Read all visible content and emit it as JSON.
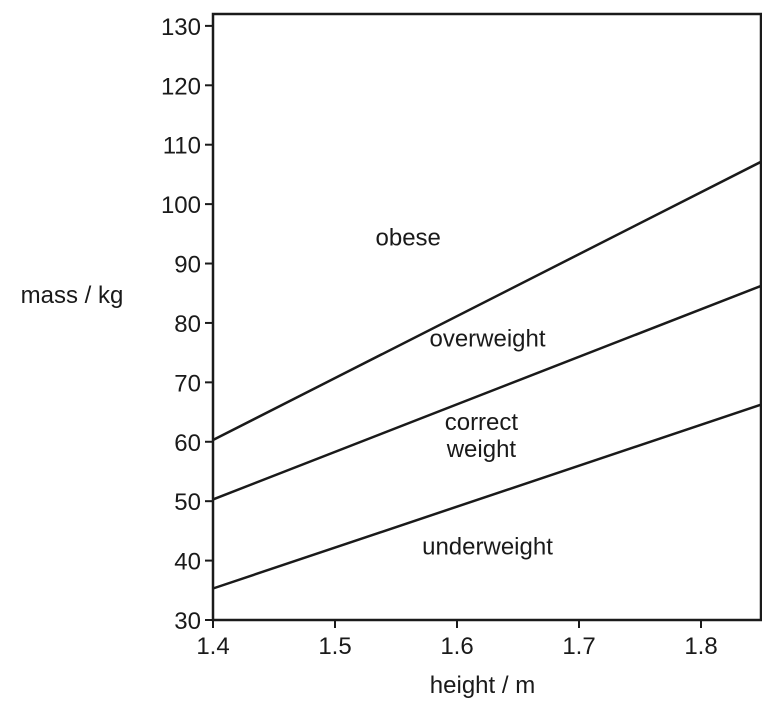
{
  "chart_data": {
    "type": "line",
    "title": "",
    "xlabel": "height / m",
    "ylabel": "mass / kg",
    "xlim": [
      1.4,
      1.85
    ],
    "ylim": [
      30,
      132
    ],
    "xticks": [
      1.4,
      1.5,
      1.6,
      1.7,
      1.8
    ],
    "xtick_labels": [
      "1.4",
      "1.5",
      "1.6",
      "1.7",
      "1.8"
    ],
    "yticks": [
      30,
      40,
      50,
      60,
      70,
      80,
      90,
      100,
      110,
      120,
      130
    ],
    "ytick_labels": [
      "30",
      "40",
      "50",
      "60",
      "70",
      "80",
      "90",
      "100",
      "110",
      "120",
      "130"
    ],
    "grid": false,
    "series": [
      {
        "x": [
          1.4,
          1.85
        ],
        "values": [
          60.3,
          107.2
        ]
      },
      {
        "x": [
          1.4,
          1.85
        ],
        "values": [
          50.3,
          86.3
        ]
      },
      {
        "x": [
          1.4,
          1.85
        ],
        "values": [
          35.3,
          66.3
        ]
      }
    ],
    "annotations": [
      {
        "lines": [
          "obese"
        ],
        "x": 1.56,
        "y": 93
      },
      {
        "lines": [
          "overweight"
        ],
        "x": 1.625,
        "y": 76
      },
      {
        "lines": [
          "correct",
          "weight"
        ],
        "x": 1.62,
        "y": 62
      },
      {
        "lines": [
          "underweight"
        ],
        "x": 1.625,
        "y": 41
      }
    ]
  }
}
